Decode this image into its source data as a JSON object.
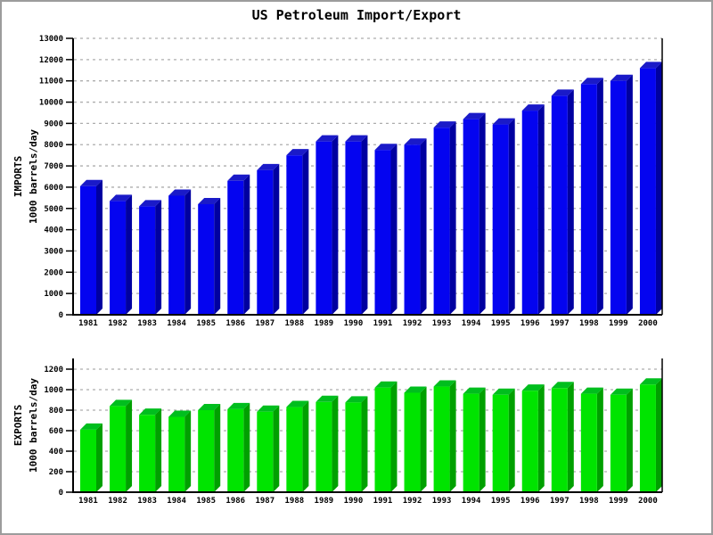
{
  "title": "US Petroleum Import/Export",
  "chart_data": [
    {
      "type": "bar",
      "name": "imports",
      "ylabel_lines": [
        "IMPORTS",
        "1000 barrels/day"
      ],
      "categories": [
        "1981",
        "1982",
        "1983",
        "1984",
        "1985",
        "1986",
        "1987",
        "1988",
        "1989",
        "1990",
        "1991",
        "1992",
        "1993",
        "1994",
        "1995",
        "1996",
        "1997",
        "1998",
        "1999",
        "2000"
      ],
      "values": [
        6050,
        5350,
        5100,
        5600,
        5200,
        6300,
        6800,
        7500,
        8150,
        8150,
        7750,
        8000,
        8800,
        9200,
        8950,
        9600,
        10300,
        10850,
        11000,
        11600
      ],
      "ylim": [
        0,
        13000
      ],
      "ytick_step": 1000,
      "grid": "horizontal-dashed",
      "legend": "none",
      "bar_colors": {
        "front": "#0404F0",
        "top": "#1A1AC8",
        "side": "#0000A0"
      }
    },
    {
      "type": "bar",
      "name": "exports",
      "ylabel_lines": [
        "EXPORTS",
        "1000 barrels/day"
      ],
      "categories": [
        "1981",
        "1982",
        "1983",
        "1984",
        "1985",
        "1986",
        "1987",
        "1988",
        "1989",
        "1990",
        "1991",
        "1992",
        "1993",
        "1994",
        "1995",
        "1996",
        "1997",
        "1998",
        "1999",
        "2000"
      ],
      "values": [
        610,
        840,
        755,
        735,
        800,
        810,
        785,
        830,
        880,
        875,
        1020,
        970,
        1030,
        960,
        950,
        990,
        1015,
        960,
        950,
        1050
      ],
      "ylim": [
        0,
        1200
      ],
      "ytick_step": 200,
      "grid": "horizontal-dashed",
      "legend": "none",
      "bar_colors": {
        "front": "#00E400",
        "top": "#00BE1E",
        "side": "#00A000"
      }
    }
  ],
  "style_colors": {
    "gridline": "#ADADAD",
    "axis": "#000000",
    "background": "#FFFFFF"
  }
}
